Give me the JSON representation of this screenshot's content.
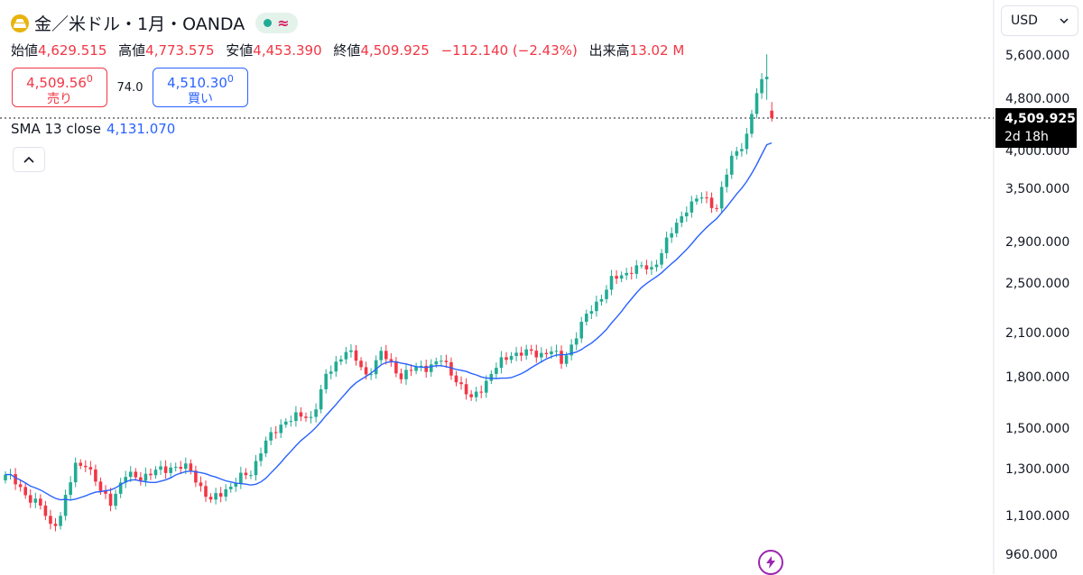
{
  "header": {
    "symbol_title": "金／米ドル・1月・OANDA",
    "status_wave": "≈"
  },
  "ohlc": {
    "open_label": "始値",
    "open": "4,629.515",
    "high_label": "高値",
    "high": "4,773.575",
    "low_label": "安値",
    "low": "4,453.390",
    "close_label": "終値",
    "close": "4,509.925",
    "change": "−112.140 (−2.43%)",
    "volume_label": "出来高",
    "volume": "13.02 M"
  },
  "trade": {
    "sell_price_main": "4,509.56",
    "sell_price_sup": "0",
    "sell_label": "売り",
    "spread": "74.0",
    "buy_price_main": "4,510.30",
    "buy_price_sup": "0",
    "buy_label": "買い"
  },
  "indicator": {
    "name": "SMA 13 close",
    "value": "4,131.070"
  },
  "currency_select": "USD",
  "last_price_label": {
    "price": "4,509.925",
    "countdown": "2d 18h"
  },
  "colors": {
    "up": "#22ab94",
    "down": "#f23645",
    "sma": "#2962ff",
    "accent": "#9c27b0"
  },
  "chart_data": {
    "type": "candlestick",
    "y_scale": "log",
    "ylim": [
      940,
      6000
    ],
    "y_ticks": [
      "5,600.000",
      "4,800.000",
      "4,000.000",
      "3,500.000",
      "2,900.000",
      "2,500.000",
      "2,100.000",
      "1,800.000",
      "1,500.000",
      "1,300.000",
      "1,100.000",
      "960.000"
    ],
    "y_tick_values": [
      5600,
      4800,
      4000,
      3500,
      2900,
      2500,
      2100,
      1800,
      1500,
      1300,
      1100,
      960
    ],
    "last_close": 4509.925,
    "waypoints": [
      [
        0,
        1280
      ],
      [
        4,
        1200
      ],
      [
        7,
        1140
      ],
      [
        9,
        1070
      ],
      [
        11,
        1110
      ],
      [
        14,
        1320
      ],
      [
        16,
        1340
      ],
      [
        19,
        1200
      ],
      [
        21,
        1170
      ],
      [
        24,
        1270
      ],
      [
        29,
        1280
      ],
      [
        33,
        1320
      ],
      [
        37,
        1300
      ],
      [
        41,
        1160
      ],
      [
        44,
        1220
      ],
      [
        49,
        1290
      ],
      [
        51,
        1400
      ],
      [
        56,
        1560
      ],
      [
        61,
        1570
      ],
      [
        64,
        1800
      ],
      [
        68,
        2000
      ],
      [
        72,
        1820
      ],
      [
        75,
        1960
      ],
      [
        79,
        1820
      ],
      [
        83,
        1870
      ],
      [
        87,
        1910
      ],
      [
        90,
        1800
      ],
      [
        93,
        1660
      ],
      [
        97,
        1830
      ],
      [
        101,
        1970
      ],
      [
        105,
        1960
      ],
      [
        109,
        1980
      ],
      [
        111,
        1900
      ],
      [
        114,
        2100
      ],
      [
        117,
        2300
      ],
      [
        121,
        2530
      ],
      [
        125,
        2650
      ],
      [
        129,
        2650
      ],
      [
        133,
        3000
      ],
      [
        136,
        3300
      ],
      [
        139,
        3400
      ],
      [
        142,
        3310
      ],
      [
        145,
        3900
      ],
      [
        148,
        4250
      ],
      [
        150,
        4900
      ],
      [
        152,
        5300
      ],
      [
        153,
        4629.515
      ]
    ],
    "last_candle": {
      "open": 4629.515,
      "high": 4773.575,
      "low": 4453.39,
      "close": 4509.925
    },
    "sma_period": 13,
    "sma_last": 4131.07
  }
}
